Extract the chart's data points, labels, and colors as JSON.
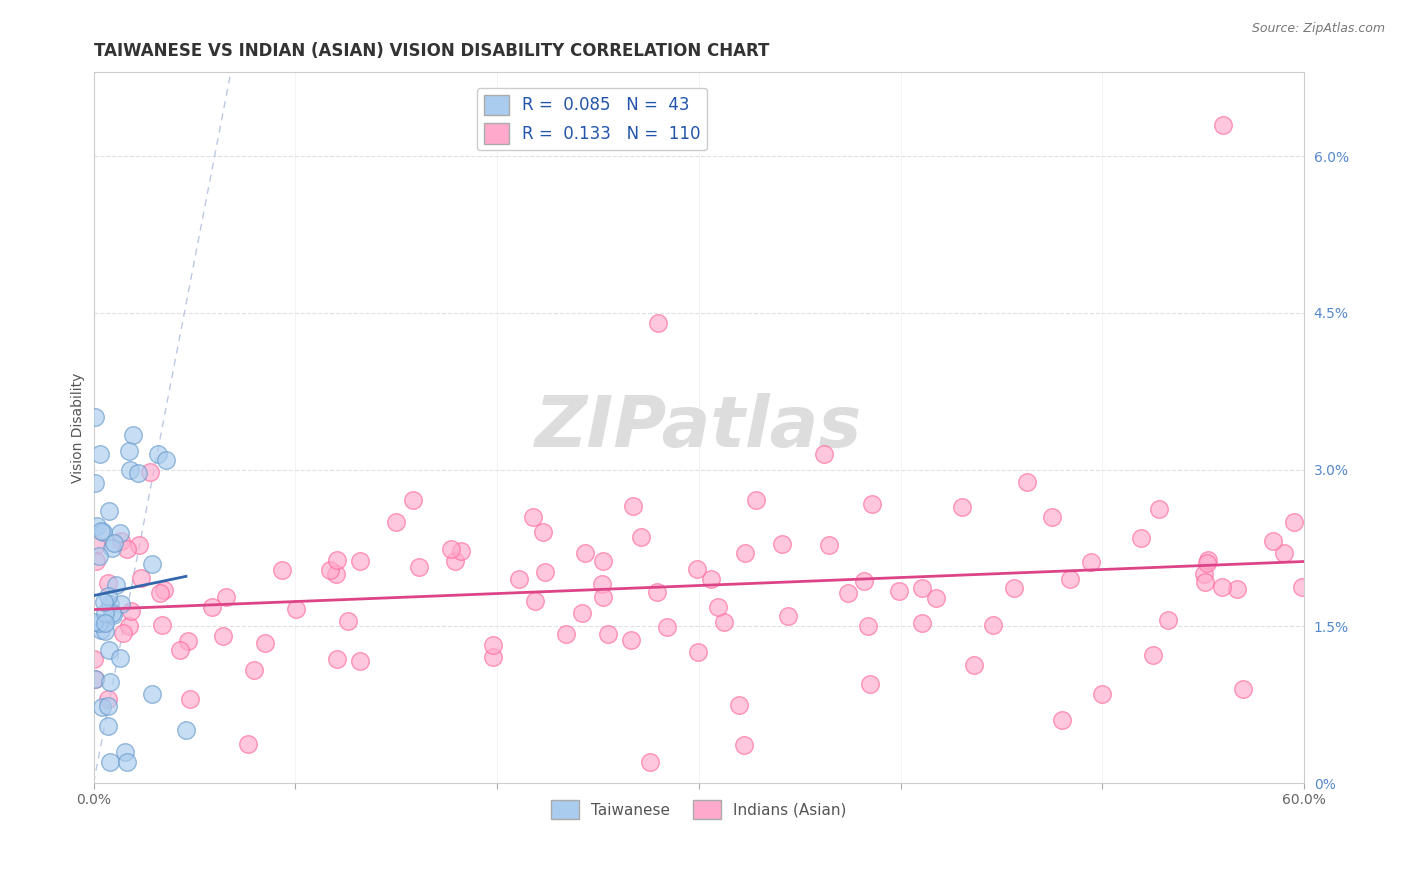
{
  "title": "TAIWANESE VS INDIAN (ASIAN) VISION DISABILITY CORRELATION CHART",
  "source": "Source: ZipAtlas.com",
  "ylabel": "Vision Disability",
  "xlim": [
    0.0,
    0.6
  ],
  "ylim": [
    0.0,
    0.068
  ],
  "xtick_vals": [
    0.0,
    0.1,
    0.2,
    0.3,
    0.4,
    0.5,
    0.6
  ],
  "xticklabels": [
    "0.0%",
    "",
    "",
    "",
    "",
    "",
    "60.0%"
  ],
  "yticks_right": [
    0.0,
    0.015,
    0.03,
    0.045,
    0.06
  ],
  "yticklabels_right": [
    "0%",
    "1.5%",
    "3.0%",
    "4.5%",
    "6.0%"
  ],
  "taiwanese_color": "#aaccee",
  "taiwanese_edge": "#6699cc",
  "indian_color": "#ffaacc",
  "indian_edge": "#ff6699",
  "trend_tw_color": "#3366aa",
  "trend_ind_color": "#dd4488",
  "R_taiwanese": 0.085,
  "N_taiwanese": 43,
  "R_indian": 0.133,
  "N_indian": 110,
  "ref_line_color": "#aabbdd",
  "background_color": "#ffffff",
  "grid_color": "#dddddd",
  "title_fontsize": 12,
  "label_fontsize": 10
}
